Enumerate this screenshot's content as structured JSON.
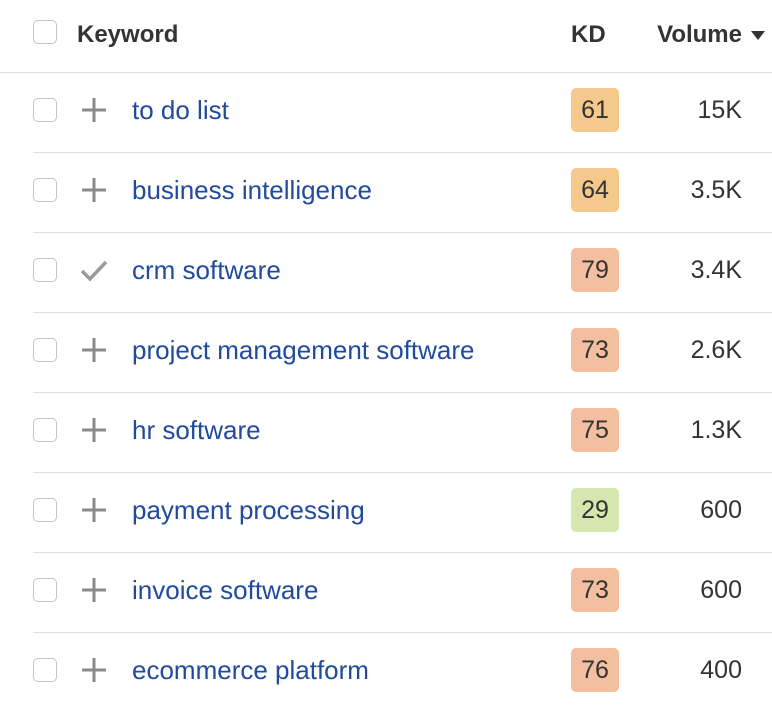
{
  "table": {
    "columns": [
      "Keyword",
      "KD",
      "Volume"
    ],
    "rows": [
      [
        "to do list",
        61,
        "15K"
      ],
      [
        "business intelligence",
        64,
        "3.5K"
      ],
      [
        "crm software",
        79,
        "3.4K"
      ],
      [
        "project management software",
        73,
        "2.6K"
      ],
      [
        "hr software",
        75,
        "1.3K"
      ],
      [
        "payment processing",
        29,
        "600"
      ],
      [
        "invoice software",
        73,
        "600"
      ],
      [
        "ecommerce platform",
        76,
        "400"
      ]
    ]
  }
}
